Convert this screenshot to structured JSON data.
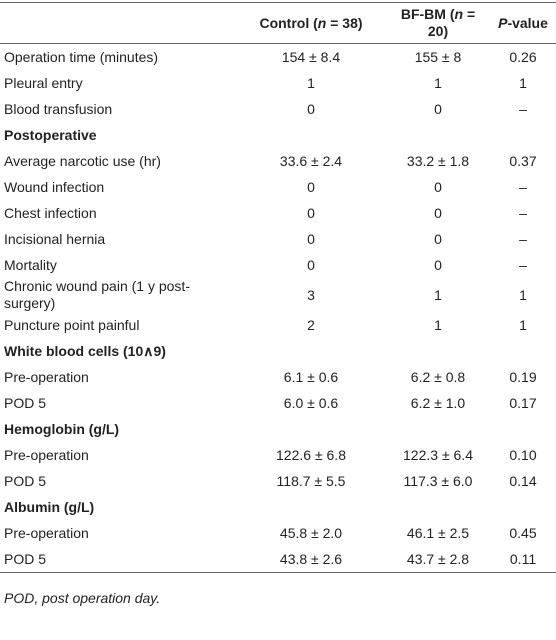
{
  "table": {
    "header": [
      [],
      [
        {
          "text": "Control ("
        },
        {
          "text": "n",
          "italic": true
        },
        {
          "text": " = 38)"
        }
      ],
      [
        {
          "text": "BF-BM ("
        },
        {
          "text": "n",
          "italic": true
        },
        {
          "text": " = 20)"
        }
      ],
      [
        {
          "text": "P",
          "italic": true
        },
        {
          "text": "-value"
        }
      ]
    ],
    "rows": [
      {
        "label": "Operation time (minutes)",
        "cells": [
          "154 ± 8.4",
          "155 ± 8",
          "0.26"
        ]
      },
      {
        "label": "Pleural entry",
        "cells": [
          "1",
          "1",
          "1"
        ]
      },
      {
        "label": "Blood transfusion",
        "cells": [
          "0",
          "0",
          "–"
        ]
      },
      {
        "section": "Postoperative"
      },
      {
        "label": "Average narcotic use (hr)",
        "cells": [
          "33.6 ± 2.4",
          "33.2 ± 1.8",
          "0.37"
        ]
      },
      {
        "label": "Wound infection",
        "cells": [
          "0",
          "0",
          "–"
        ]
      },
      {
        "label": "Chest infection",
        "cells": [
          "0",
          "0",
          "–"
        ]
      },
      {
        "label": "Incisional hernia",
        "cells": [
          "0",
          "0",
          "–"
        ]
      },
      {
        "label": "Mortality",
        "cells": [
          "0",
          "0",
          "–"
        ]
      },
      {
        "label": "Chronic wound pain (1 y post-surgery)",
        "cells": [
          "3",
          "1",
          "1"
        ]
      },
      {
        "label": "Puncture point painful",
        "cells": [
          "2",
          "1",
          "1"
        ]
      },
      {
        "section": "White blood cells (10∧9)"
      },
      {
        "label": "Pre-operation",
        "cells": [
          "6.1 ± 0.6",
          "6.2 ± 0.8",
          "0.19"
        ]
      },
      {
        "label": "POD 5",
        "cells": [
          "6.0 ± 0.6",
          "6.2 ± 1.0",
          "0.17"
        ]
      },
      {
        "section": "Hemoglobin (g/L)"
      },
      {
        "label": "Pre-operation",
        "cells": [
          "122.6 ± 6.8",
          "122.3 ± 6.4",
          "0.10"
        ]
      },
      {
        "label": "POD 5",
        "cells": [
          "118.7 ± 5.5",
          "117.3 ± 6.0",
          "0.14"
        ]
      },
      {
        "section": "Albumin (g/L)"
      },
      {
        "label": "Pre-operation",
        "cells": [
          "45.8 ± 2.0",
          "46.1 ± 2.5",
          "0.45"
        ]
      },
      {
        "label": "POD 5",
        "cells": [
          "43.8 ± 2.6",
          "43.7 ± 2.8",
          "0.11"
        ]
      }
    ],
    "footnote": "POD, post operation day."
  }
}
